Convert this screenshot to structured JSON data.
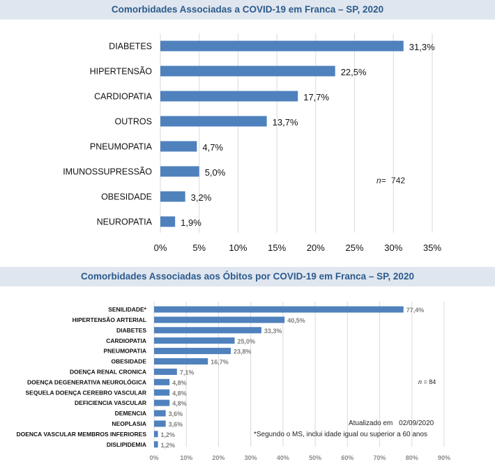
{
  "colors": {
    "bar": "#4f81bd",
    "header_bg": "#dfe6ef",
    "header_text": "#2c5a8c",
    "grid": "#d9d9d9"
  },
  "chart_data": [
    {
      "type": "bar",
      "orientation": "horizontal",
      "title": "Comorbidades Associadas a COVID-19 em Franca – SP, 2020",
      "categories": [
        "DIABETES",
        "HIPERTENSÃO",
        "CARDIOPATIA",
        "OUTROS",
        "PNEUMOPATIA",
        "IMUNOSSUPRESSÃO",
        "OBESIDADE",
        "NEUROPATIA"
      ],
      "values": [
        31.3,
        22.5,
        17.7,
        13.7,
        4.7,
        5.0,
        3.2,
        1.9
      ],
      "value_labels": [
        "31,3%",
        "22,5%",
        "17,7%",
        "13,7%",
        "4,7%",
        "5,0%",
        "3,2%",
        "1,9%"
      ],
      "xlim": [
        0,
        35
      ],
      "xticks": [
        "0%",
        "5%",
        "10%",
        "15%",
        "20%",
        "25%",
        "30%",
        "35%"
      ],
      "grid": true,
      "annotation": {
        "prefix": "n=",
        "value": "742"
      }
    },
    {
      "type": "bar",
      "orientation": "horizontal",
      "title": "Comorbidades Associadas aos Óbitos por COVID-19 em Franca – SP, 2020",
      "categories": [
        "SENILIDADE*",
        "HIPERTENSÃO ARTERIAL",
        "DIABETES",
        "CARDIOPATIA",
        "PNEUMOPATIA",
        "OBESIDADE",
        "DOENÇA RENAL CRONICA",
        "DOENÇA DEGENERATIVA NEUROLÓGICA",
        "SEQUELA DOENÇA CEREBRO VASCULAR",
        "DEFICIENCIA VASCULAR",
        "DEMENCIA",
        "NEOPLASIA",
        "DOENCA VASCULAR MEMBROS INFERIORES",
        "DISLIPIDEMIA"
      ],
      "values": [
        77.4,
        40.5,
        33.3,
        25.0,
        23.8,
        16.7,
        7.1,
        4.8,
        4.8,
        4.8,
        3.6,
        3.6,
        1.2,
        1.2
      ],
      "value_labels": [
        "77,4%",
        "40,5%",
        "33,3%",
        "25,0%",
        "23,8%",
        "16,7%",
        "7,1%",
        "4,8%",
        "4,8%",
        "4,8%",
        "3,6%",
        "3,6%",
        "1,2%",
        "1,2%"
      ],
      "xlim": [
        0,
        90
      ],
      "xticks": [
        "0%",
        "10%",
        "20%",
        "30%",
        "40%",
        "50%",
        "60%",
        "70%",
        "80%",
        "90%"
      ],
      "grid": true,
      "annotation": {
        "prefix": "n =",
        "value": "84"
      },
      "updated_label": "Atualizado em",
      "updated_date": "02/09/2020",
      "footnote": "*Segundo o MS, inclui idade igual ou superior a 60 anos"
    }
  ]
}
